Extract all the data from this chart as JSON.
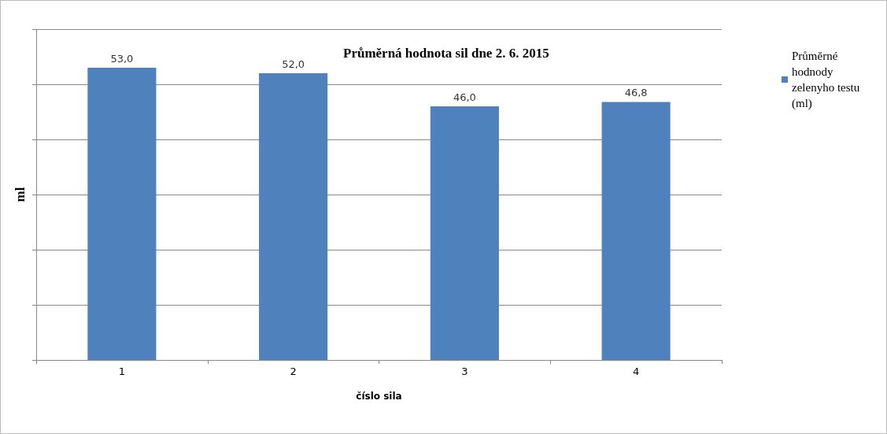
{
  "chart_data": {
    "type": "bar",
    "title": "Průměrná hodnota sil dne 2. 6. 2015",
    "xlabel": "číslo sila",
    "ylabel": "ml",
    "categories": [
      "1",
      "2",
      "3",
      "4"
    ],
    "series": [
      {
        "name": "Průměrné hodnody zelenyho testu (ml)",
        "color": "#4f81bd",
        "values": [
          53.0,
          52.0,
          46.0,
          46.8
        ],
        "value_labels": [
          "53,0",
          "52,0",
          "46,0",
          "46,8"
        ]
      }
    ],
    "grid": "y",
    "legend": "right",
    "tick_labels": "x"
  }
}
